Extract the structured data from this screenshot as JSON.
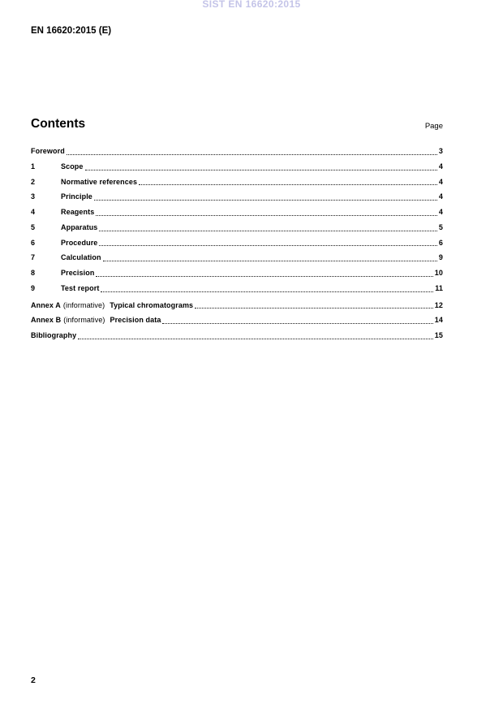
{
  "header": {
    "watermark": "SIST EN 16620:2015",
    "doc_ref": "EN 16620:2015 (E)"
  },
  "contents": {
    "title": "Contents",
    "page_label": "Page",
    "entries": [
      {
        "num": "",
        "title": "Foreword",
        "page": "3"
      },
      {
        "num": "1",
        "title": "Scope",
        "page": "4"
      },
      {
        "num": "2",
        "title": "Normative references",
        "page": "4"
      },
      {
        "num": "3",
        "title": "Principle",
        "page": "4"
      },
      {
        "num": "4",
        "title": "Reagents",
        "page": "4"
      },
      {
        "num": "5",
        "title": "Apparatus",
        "page": "5"
      },
      {
        "num": "6",
        "title": "Procedure",
        "page": "6"
      },
      {
        "num": "7",
        "title": "Calculation",
        "page": "9"
      },
      {
        "num": "8",
        "title": "Precision",
        "page": "10"
      },
      {
        "num": "9",
        "title": "Test report",
        "page": "11"
      },
      {
        "prefix": "Annex A",
        "infix": "(informative)",
        "title": "Typical chromatograms",
        "page": "12"
      },
      {
        "prefix": "Annex B",
        "infix": "(informative)",
        "title": "Precision data",
        "page": "14"
      },
      {
        "num": "",
        "title": "Bibliography",
        "page": "15"
      }
    ]
  },
  "footer": {
    "page_number": "2"
  },
  "colors": {
    "watermark": "#c4c4e8",
    "text": "#000000"
  }
}
